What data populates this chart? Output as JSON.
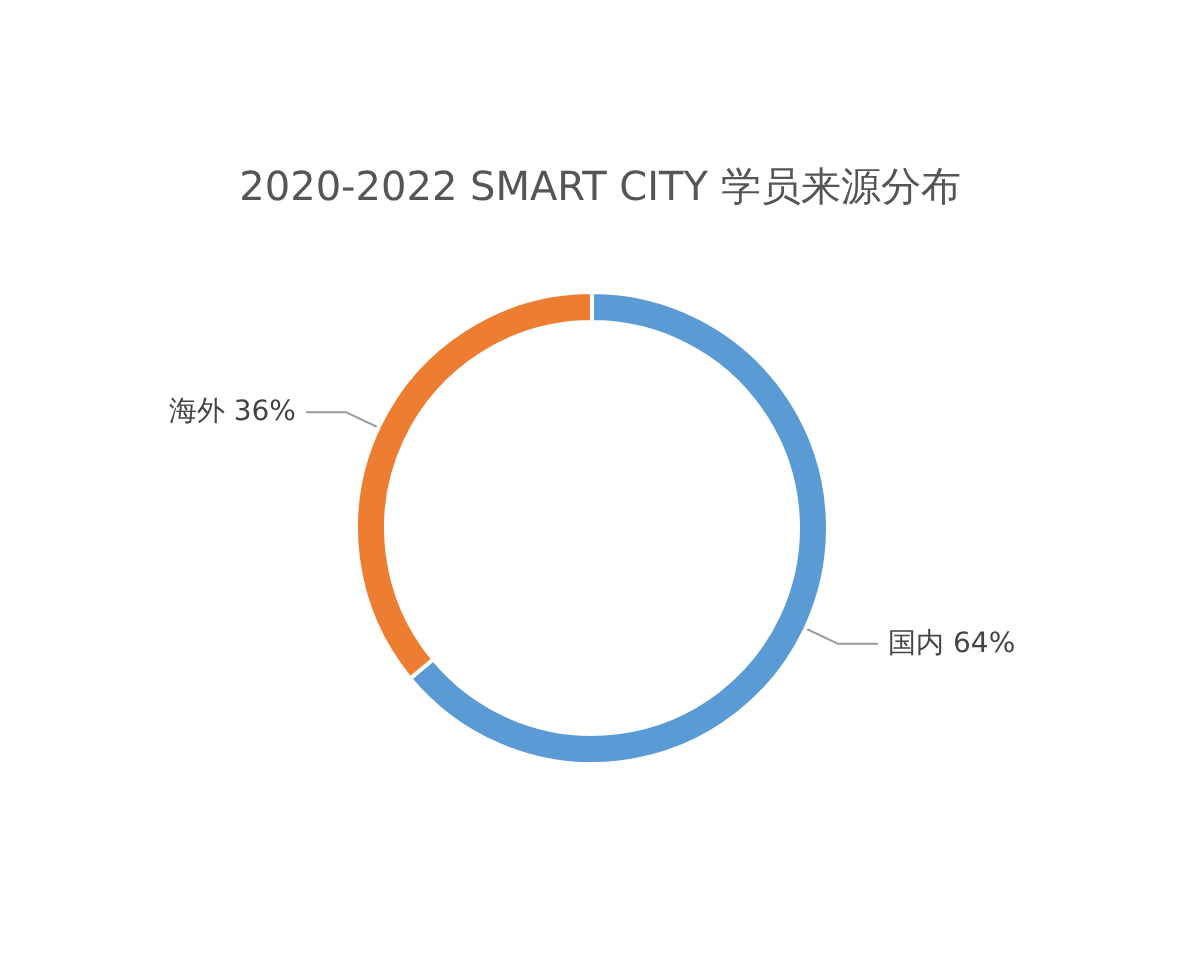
{
  "chart_data": {
    "type": "donut",
    "title": "2020-2022 SMART CITY 学员来源分布",
    "categories": [
      "国内",
      "海外"
    ],
    "values": [
      64,
      36
    ],
    "colors": [
      "#5b9bd5",
      "#ed7d31"
    ],
    "value_labels": [
      "64%",
      "36%"
    ],
    "legend": false
  }
}
